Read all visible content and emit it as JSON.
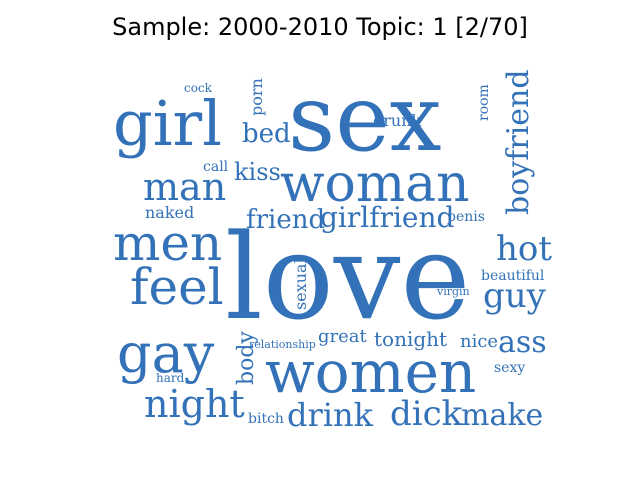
{
  "title": "Sample: 2000-2010 Topic: 1 [2/70]",
  "word_color": "#3372b8",
  "words": [
    {
      "text": "love"
    },
    {
      "text": "sex"
    },
    {
      "text": "women"
    },
    {
      "text": "woman"
    },
    {
      "text": "girl"
    },
    {
      "text": "gay"
    },
    {
      "text": "men"
    },
    {
      "text": "feel"
    },
    {
      "text": "man"
    },
    {
      "text": "night"
    },
    {
      "text": "boyfriend"
    },
    {
      "text": "girlfriend"
    },
    {
      "text": "drink"
    },
    {
      "text": "dick"
    },
    {
      "text": "make"
    },
    {
      "text": "hot"
    },
    {
      "text": "guy"
    },
    {
      "text": "ass"
    },
    {
      "text": "friend"
    },
    {
      "text": "kiss"
    },
    {
      "text": "bed"
    },
    {
      "text": "body"
    },
    {
      "text": "tonight"
    },
    {
      "text": "great"
    },
    {
      "text": "nice"
    },
    {
      "text": "drunk"
    },
    {
      "text": "naked"
    },
    {
      "text": "sexual"
    },
    {
      "text": "porn"
    },
    {
      "text": "room"
    },
    {
      "text": "call"
    },
    {
      "text": "penis"
    },
    {
      "text": "beautiful"
    },
    {
      "text": "sexy"
    },
    {
      "text": "bitch"
    },
    {
      "text": "hard"
    },
    {
      "text": "relationship"
    },
    {
      "text": "virgin"
    },
    {
      "text": "cock"
    }
  ]
}
